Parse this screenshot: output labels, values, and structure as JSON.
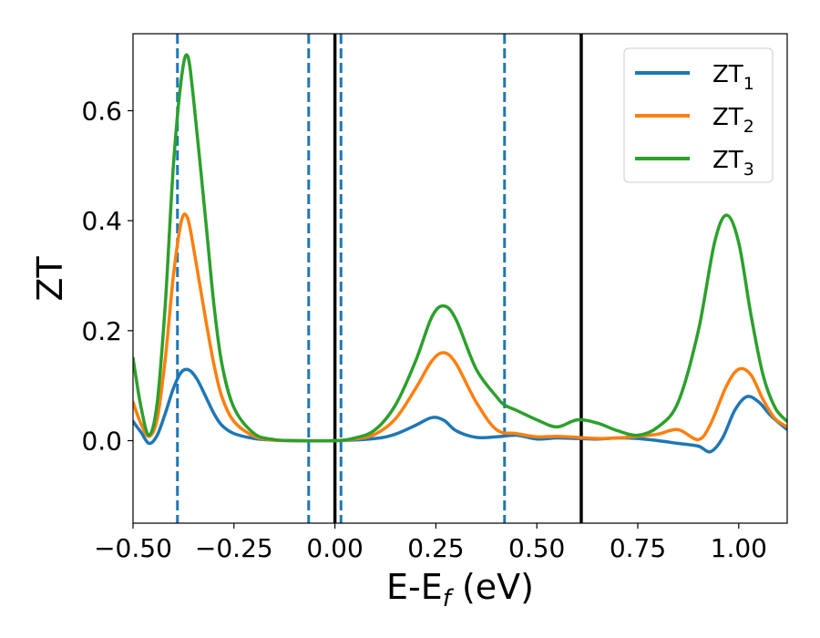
{
  "chart_data": {
    "type": "line",
    "xlabel": {
      "main": "E-E",
      "sub": "f",
      "unit": " (eV)"
    },
    "ylabel": "ZT",
    "xlim": [
      -0.5,
      1.12
    ],
    "ylim": [
      -0.15,
      0.74
    ],
    "grid": false,
    "legend_position": "top-right",
    "x_ticks": [
      {
        "value": -0.5,
        "label": "−0.50"
      },
      {
        "value": -0.25,
        "label": "−0.25"
      },
      {
        "value": 0.0,
        "label": "0.00"
      },
      {
        "value": 0.25,
        "label": "0.25"
      },
      {
        "value": 0.5,
        "label": "0.50"
      },
      {
        "value": 0.75,
        "label": "0.75"
      },
      {
        "value": 1.0,
        "label": "1.00"
      }
    ],
    "y_ticks": [
      {
        "value": 0.0,
        "label": "0.0"
      },
      {
        "value": 0.2,
        "label": "0.2"
      },
      {
        "value": 0.4,
        "label": "0.4"
      },
      {
        "value": 0.6,
        "label": "0.6"
      }
    ],
    "series": [
      {
        "name": "ZT",
        "subscript": "1",
        "color": "#1f77b4",
        "points": [
          [
            -0.5,
            0.035
          ],
          [
            -0.48,
            0.015
          ],
          [
            -0.46,
            -0.005
          ],
          [
            -0.44,
            0.01
          ],
          [
            -0.42,
            0.05
          ],
          [
            -0.4,
            0.095
          ],
          [
            -0.38,
            0.125
          ],
          [
            -0.36,
            0.128
          ],
          [
            -0.34,
            0.11
          ],
          [
            -0.32,
            0.08
          ],
          [
            -0.3,
            0.05
          ],
          [
            -0.28,
            0.028
          ],
          [
            -0.25,
            0.013
          ],
          [
            -0.2,
            0.004
          ],
          [
            -0.15,
            0.001
          ],
          [
            -0.1,
            0.0
          ],
          [
            0.0,
            0.0
          ],
          [
            0.1,
            0.004
          ],
          [
            0.15,
            0.012
          ],
          [
            0.2,
            0.028
          ],
          [
            0.24,
            0.042
          ],
          [
            0.27,
            0.037
          ],
          [
            0.3,
            0.018
          ],
          [
            0.35,
            0.006
          ],
          [
            0.4,
            0.007
          ],
          [
            0.45,
            0.01
          ],
          [
            0.5,
            0.003
          ],
          [
            0.55,
            0.005
          ],
          [
            0.6,
            0.004
          ],
          [
            0.65,
            0.003
          ],
          [
            0.7,
            0.005
          ],
          [
            0.75,
            0.004
          ],
          [
            0.8,
            0.0
          ],
          [
            0.85,
            -0.005
          ],
          [
            0.9,
            -0.01
          ],
          [
            0.93,
            -0.02
          ],
          [
            0.96,
            0.005
          ],
          [
            0.99,
            0.055
          ],
          [
            1.02,
            0.08
          ],
          [
            1.05,
            0.07
          ],
          [
            1.08,
            0.045
          ],
          [
            1.12,
            0.02
          ]
        ]
      },
      {
        "name": "ZT",
        "subscript": "2",
        "color": "#ff7f0e",
        "points": [
          [
            -0.5,
            0.07
          ],
          [
            -0.48,
            0.03
          ],
          [
            -0.46,
            0.008
          ],
          [
            -0.44,
            0.04
          ],
          [
            -0.42,
            0.15
          ],
          [
            -0.4,
            0.3
          ],
          [
            -0.38,
            0.4
          ],
          [
            -0.365,
            0.405
          ],
          [
            -0.35,
            0.35
          ],
          [
            -0.32,
            0.22
          ],
          [
            -0.3,
            0.14
          ],
          [
            -0.28,
            0.08
          ],
          [
            -0.25,
            0.035
          ],
          [
            -0.2,
            0.008
          ],
          [
            -0.15,
            0.001
          ],
          [
            -0.1,
            0.0
          ],
          [
            0.0,
            0.0
          ],
          [
            0.05,
            0.003
          ],
          [
            0.1,
            0.012
          ],
          [
            0.15,
            0.04
          ],
          [
            0.2,
            0.095
          ],
          [
            0.24,
            0.145
          ],
          [
            0.27,
            0.16
          ],
          [
            0.3,
            0.14
          ],
          [
            0.35,
            0.07
          ],
          [
            0.4,
            0.02
          ],
          [
            0.45,
            0.013
          ],
          [
            0.5,
            0.007
          ],
          [
            0.55,
            0.008
          ],
          [
            0.6,
            0.006
          ],
          [
            0.65,
            0.004
          ],
          [
            0.7,
            0.005
          ],
          [
            0.75,
            0.008
          ],
          [
            0.8,
            0.012
          ],
          [
            0.85,
            0.02
          ],
          [
            0.9,
            0.002
          ],
          [
            0.93,
            0.03
          ],
          [
            0.97,
            0.1
          ],
          [
            1.0,
            0.13
          ],
          [
            1.03,
            0.12
          ],
          [
            1.06,
            0.075
          ],
          [
            1.09,
            0.04
          ],
          [
            1.12,
            0.025
          ]
        ]
      },
      {
        "name": "ZT",
        "subscript": "3",
        "color": "#2ca02c",
        "points": [
          [
            -0.5,
            0.15
          ],
          [
            -0.48,
            0.06
          ],
          [
            -0.46,
            0.01
          ],
          [
            -0.44,
            0.07
          ],
          [
            -0.42,
            0.25
          ],
          [
            -0.4,
            0.5
          ],
          [
            -0.38,
            0.66
          ],
          [
            -0.365,
            0.7
          ],
          [
            -0.35,
            0.62
          ],
          [
            -0.32,
            0.4
          ],
          [
            -0.3,
            0.25
          ],
          [
            -0.28,
            0.14
          ],
          [
            -0.25,
            0.06
          ],
          [
            -0.2,
            0.013
          ],
          [
            -0.15,
            0.002
          ],
          [
            -0.1,
            0.0
          ],
          [
            0.0,
            0.0
          ],
          [
            0.05,
            0.005
          ],
          [
            0.1,
            0.02
          ],
          [
            0.15,
            0.065
          ],
          [
            0.2,
            0.145
          ],
          [
            0.24,
            0.225
          ],
          [
            0.27,
            0.245
          ],
          [
            0.3,
            0.22
          ],
          [
            0.35,
            0.13
          ],
          [
            0.4,
            0.08
          ],
          [
            0.42,
            0.065
          ],
          [
            0.45,
            0.055
          ],
          [
            0.5,
            0.038
          ],
          [
            0.55,
            0.025
          ],
          [
            0.6,
            0.038
          ],
          [
            0.65,
            0.032
          ],
          [
            0.7,
            0.018
          ],
          [
            0.75,
            0.01
          ],
          [
            0.8,
            0.025
          ],
          [
            0.85,
            0.07
          ],
          [
            0.9,
            0.2
          ],
          [
            0.94,
            0.36
          ],
          [
            0.97,
            0.41
          ],
          [
            1.0,
            0.36
          ],
          [
            1.03,
            0.23
          ],
          [
            1.06,
            0.12
          ],
          [
            1.09,
            0.06
          ],
          [
            1.12,
            0.035
          ]
        ]
      }
    ],
    "vlines": [
      {
        "x": -0.39,
        "style": "dashed",
        "color": "#1f77b4"
      },
      {
        "x": -0.065,
        "style": "dashed",
        "color": "#1f77b4"
      },
      {
        "x": 0.015,
        "style": "dashed",
        "color": "#1f77b4"
      },
      {
        "x": 0.42,
        "style": "dashed",
        "color": "#1f77b4"
      },
      {
        "x": 0.0,
        "style": "solid",
        "color": "#000000"
      },
      {
        "x": 0.61,
        "style": "solid",
        "color": "#000000"
      }
    ]
  }
}
